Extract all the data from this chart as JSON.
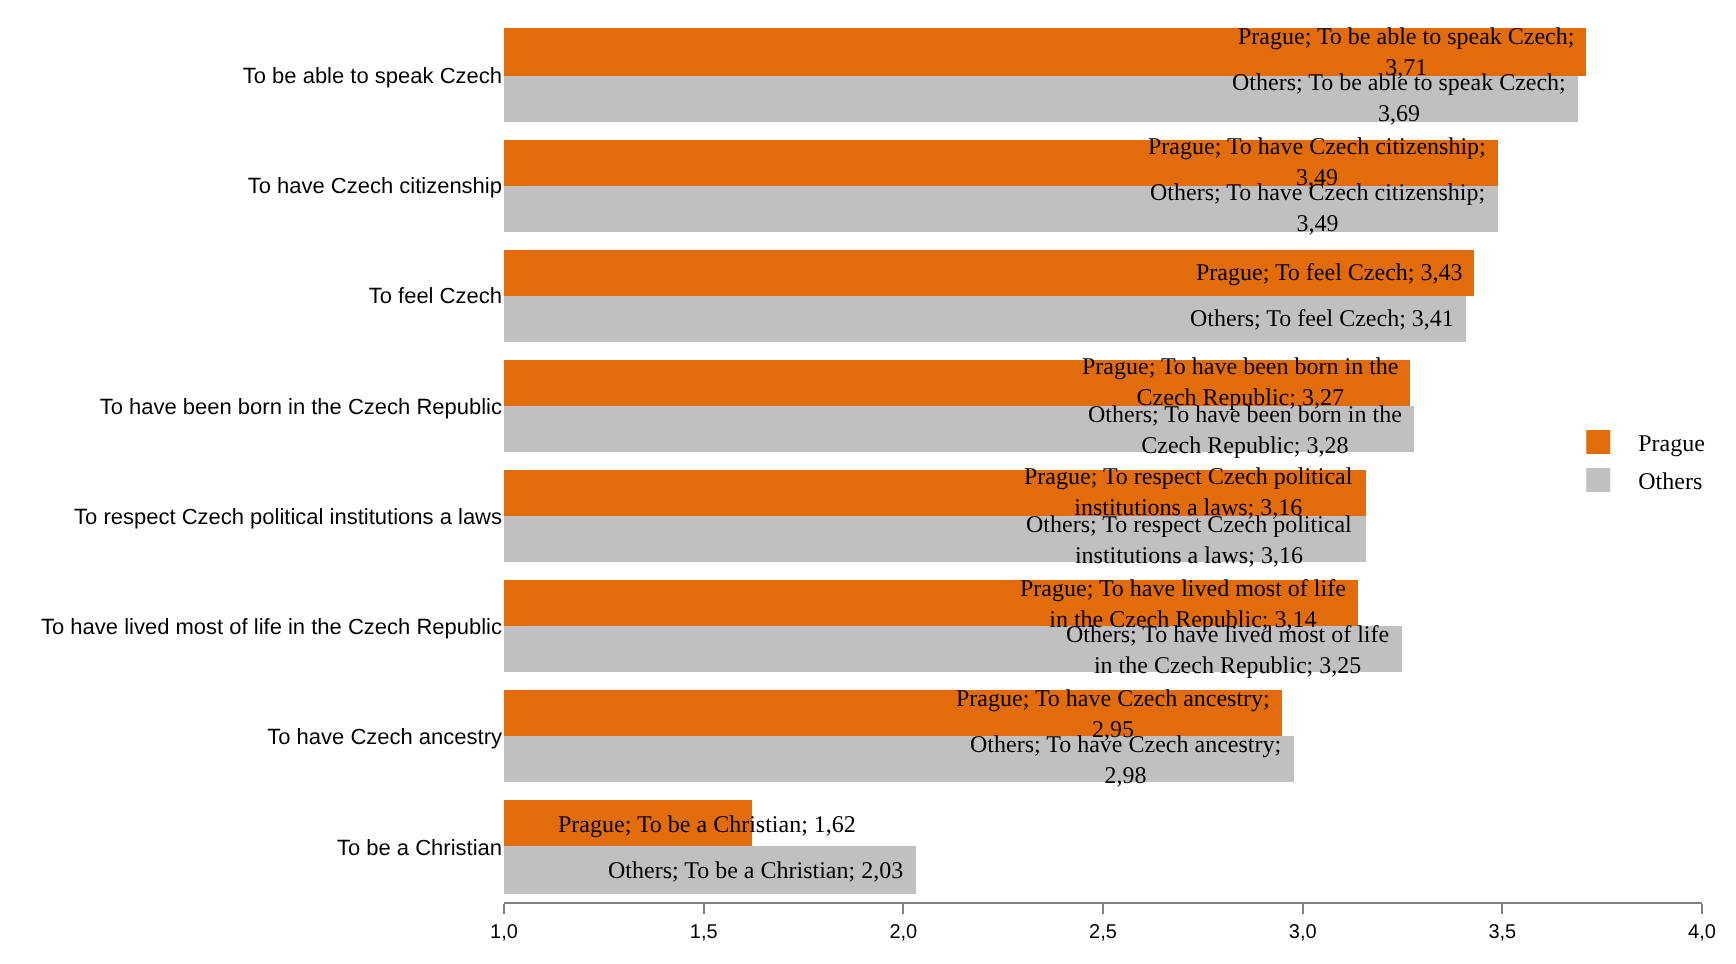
{
  "chart_data": {
    "type": "bar",
    "orientation": "horizontal",
    "categories": [
      "To be able to speak Czech",
      "To have Czech citizenship",
      "To feel Czech",
      "To have been born in the Czech Republic",
      "To respect Czech political institutions a laws",
      "To have lived most of life in the Czech Republic",
      "To have Czech ancestry",
      "To be a Christian"
    ],
    "series": [
      {
        "name": "Prague",
        "color": "#e36c0a",
        "values": [
          3.71,
          3.49,
          3.43,
          3.27,
          3.16,
          3.14,
          2.95,
          1.62
        ],
        "value_labels": [
          "Prague; To be able to speak Czech;\n3,71",
          "Prague; To have Czech citizenship;\n3,49",
          "Prague; To feel Czech; 3,43",
          "Prague; To have been born in the\nCzech Republic; 3,27",
          "Prague; To respect Czech political\ninstitutions a laws; 3,16",
          "Prague; To have lived most of life\nin the Czech Republic; 3,14",
          "Prague; To have Czech ancestry;\n2,95",
          "Prague; To be a Christian; 1,62"
        ]
      },
      {
        "name": "Others",
        "color": "#c0c0c0",
        "values": [
          3.69,
          3.49,
          3.41,
          3.28,
          3.16,
          3.25,
          2.98,
          2.03
        ],
        "value_labels": [
          "Others; To be able to speak Czech;\n3,69",
          "Others; To have Czech citizenship;\n3,49",
          "Others; To feel Czech; 3,41",
          "Others; To have been born in the\nCzech Republic; 3,28",
          "Others; To respect Czech political\ninstitutions a laws; 3,16",
          "Others; To have lived most of life\nin the Czech Republic; 3,25",
          "Others; To have Czech ancestry;\n2,98",
          "Others; To be a Christian; 2,03"
        ]
      }
    ],
    "xlim": [
      1.0,
      4.0
    ],
    "xticks": [
      {
        "value": 1.0,
        "label": "1,0"
      },
      {
        "value": 1.5,
        "label": "1,5"
      },
      {
        "value": 2.0,
        "label": "2,0"
      },
      {
        "value": 2.5,
        "label": "2,5"
      },
      {
        "value": 3.0,
        "label": "3,0"
      },
      {
        "value": 3.5,
        "label": "3,5"
      },
      {
        "value": 4.0,
        "label": "4,0"
      }
    ],
    "legend": "right"
  }
}
